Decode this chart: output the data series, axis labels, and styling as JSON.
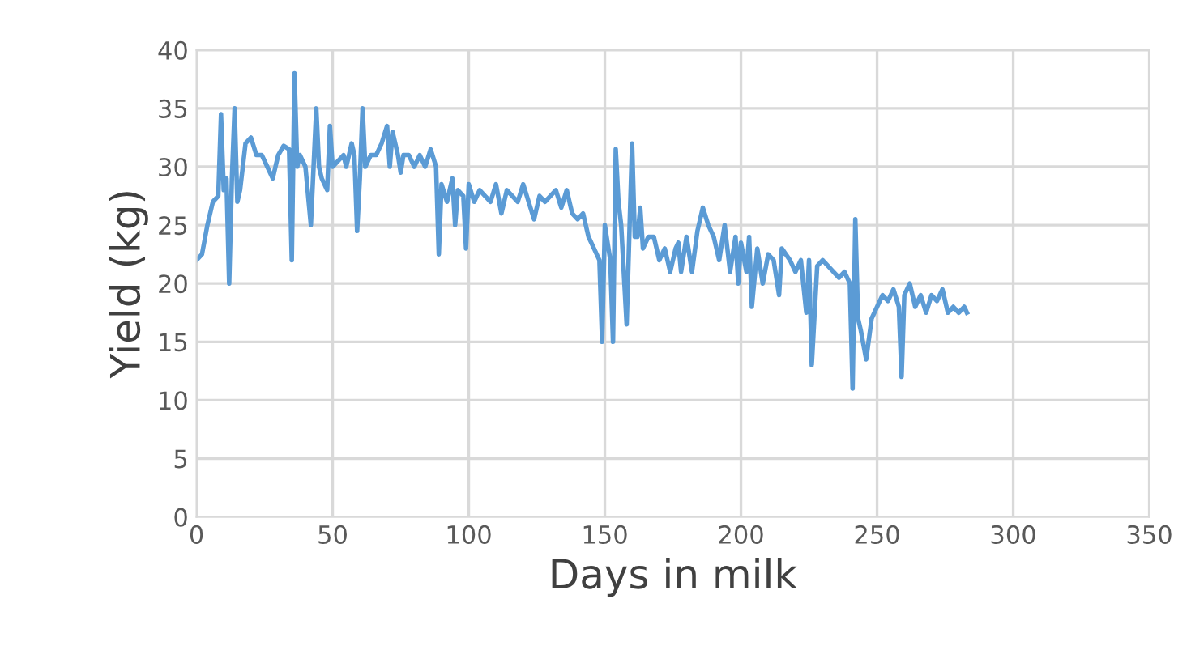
{
  "chart_data": {
    "type": "line",
    "xlabel": "Days in milk",
    "ylabel": "Yield (kg)",
    "xlim": [
      0,
      350
    ],
    "xticks": [
      0,
      50,
      100,
      150,
      200,
      250,
      300,
      350
    ],
    "ylim": [
      0,
      40
    ],
    "yticks": [
      0,
      5,
      10,
      15,
      20,
      25,
      30,
      35,
      40
    ],
    "grid": true,
    "legend": false,
    "marker": "none",
    "line_style": "solid",
    "series": [
      {
        "color": "#5b9bd5",
        "x": [
          0,
          2,
          4,
          6,
          8,
          9,
          10,
          11,
          12,
          13,
          14,
          15,
          16,
          18,
          20,
          22,
          24,
          26,
          28,
          30,
          32,
          34,
          35,
          36,
          37,
          38,
          40,
          42,
          43,
          44,
          45,
          46,
          48,
          49,
          50,
          52,
          54,
          55,
          56,
          57,
          58,
          59,
          60,
          61,
          62,
          64,
          66,
          68,
          70,
          71,
          72,
          74,
          75,
          76,
          78,
          80,
          82,
          84,
          86,
          88,
          89,
          90,
          92,
          94,
          95,
          96,
          98,
          99,
          100,
          102,
          104,
          106,
          108,
          110,
          112,
          114,
          116,
          118,
          120,
          122,
          124,
          126,
          128,
          130,
          132,
          134,
          136,
          138,
          140,
          142,
          144,
          146,
          148,
          149,
          150,
          152,
          153,
          154,
          155,
          156,
          158,
          160,
          161,
          162,
          163,
          164,
          166,
          168,
          170,
          172,
          174,
          176,
          177,
          178,
          180,
          182,
          184,
          186,
          188,
          190,
          192,
          194,
          196,
          198,
          199,
          200,
          202,
          203,
          204,
          206,
          208,
          210,
          212,
          214,
          215,
          218,
          220,
          222,
          224,
          225,
          226,
          228,
          230,
          232,
          234,
          236,
          238,
          240,
          241,
          242,
          243,
          244,
          246,
          248,
          250,
          252,
          254,
          256,
          258,
          259,
          260,
          262,
          264,
          266,
          268,
          270,
          272,
          274,
          276,
          278,
          280,
          282,
          283
        ],
        "values": [
          22,
          22.5,
          25,
          27,
          27.5,
          34.5,
          28,
          29,
          20,
          29,
          35,
          27,
          28,
          32,
          32.5,
          31,
          31,
          30,
          29,
          31,
          31.8,
          31.5,
          22,
          38,
          30,
          31,
          30,
          25,
          30,
          35,
          30,
          29,
          28,
          33.5,
          30,
          30.5,
          31,
          30,
          31,
          32,
          31,
          24.5,
          29,
          35,
          30,
          31,
          31,
          32,
          33.5,
          30,
          33,
          31,
          29.5,
          31,
          31,
          30,
          31,
          30,
          31.5,
          30,
          22.5,
          28.5,
          27,
          29,
          25,
          28,
          27.5,
          23,
          28.5,
          27,
          28,
          27.5,
          27,
          28.5,
          26,
          28,
          27.5,
          27,
          28.5,
          27,
          25.5,
          27.5,
          27,
          27.5,
          28,
          26.5,
          28,
          26,
          25.5,
          26,
          24,
          23,
          22,
          15,
          25,
          22,
          15,
          31.5,
          27,
          25,
          16.5,
          32,
          24,
          24,
          26.5,
          23,
          24,
          24,
          22,
          23,
          21,
          23,
          23.5,
          21,
          24,
          21,
          24.5,
          26.5,
          25,
          24,
          22,
          25,
          21,
          24,
          20,
          23.5,
          21,
          24,
          18,
          23,
          20,
          22.5,
          22,
          19,
          23,
          22,
          21,
          22,
          17.5,
          22,
          13,
          21.5,
          22,
          21.5,
          21,
          20.5,
          21,
          20,
          11,
          25.5,
          17,
          16,
          13.5,
          17,
          18,
          19,
          18.5,
          19.5,
          18,
          12,
          19,
          20,
          18,
          19,
          17.5,
          19,
          18.5,
          19.5,
          17.5,
          18,
          17.5,
          18,
          17.5
        ]
      }
    ]
  }
}
